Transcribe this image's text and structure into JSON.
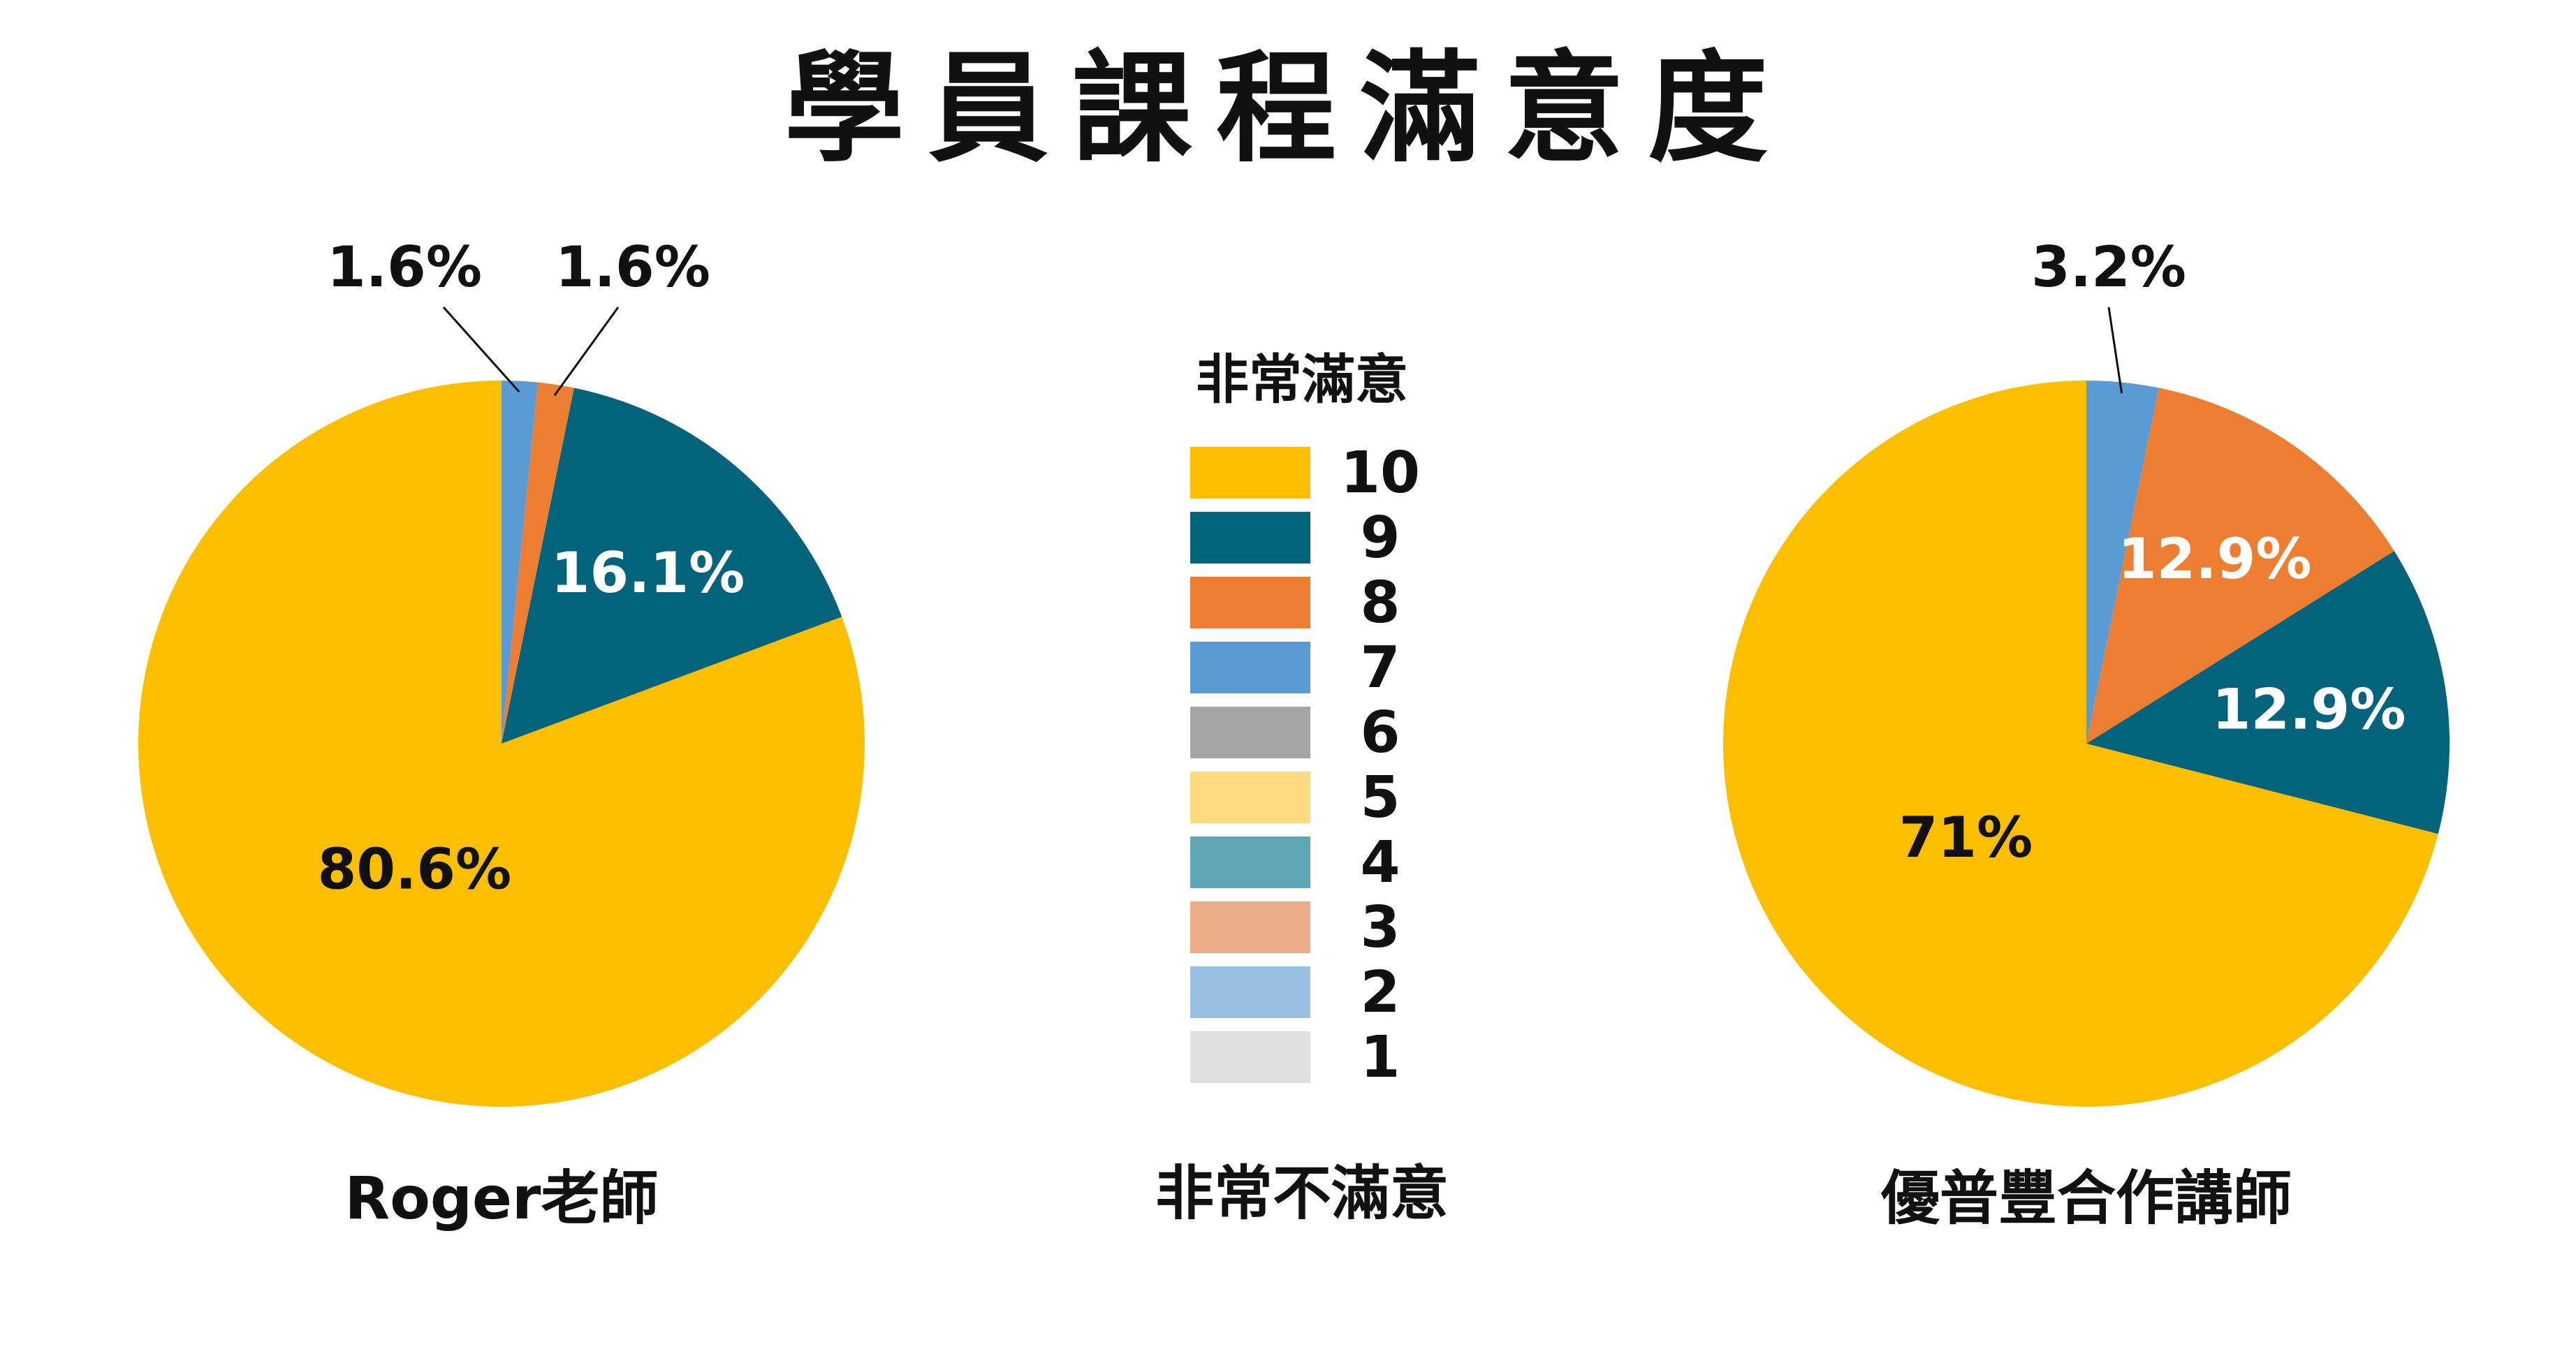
{
  "title": "學員課程滿意度",
  "legend": {
    "top_label": "非常滿意",
    "bottom_label": "非常不滿意",
    "items": [
      {
        "label": "10",
        "color": "#FBBF00"
      },
      {
        "label": "9",
        "color": "#03637A"
      },
      {
        "label": "8",
        "color": "#ED7D31"
      },
      {
        "label": "7",
        "color": "#5B9BD5"
      },
      {
        "label": "6",
        "color": "#A5A5A5"
      },
      {
        "label": "5",
        "color": "#FFDA80"
      },
      {
        "label": "4",
        "color": "#5FA7B4"
      },
      {
        "label": "3",
        "color": "#EAAD87"
      },
      {
        "label": "2",
        "color": "#97C0E3"
      },
      {
        "label": "1",
        "color": "#E0E0E0"
      }
    ]
  },
  "chart_data": [
    {
      "type": "pie",
      "title": "Roger老師",
      "start": "12 o'clock",
      "direction": "clockwise",
      "slices": [
        {
          "category": "7",
          "value": 1.6,
          "label": "1.6%",
          "color": "#5B9BD5",
          "label_style": "callout-dark"
        },
        {
          "category": "8",
          "value": 1.6,
          "label": "1.6%",
          "color": "#ED7D31",
          "label_style": "callout-dark"
        },
        {
          "category": "9",
          "value": 16.1,
          "label": "16.1%",
          "color": "#03637A",
          "label_style": "inside-light"
        },
        {
          "category": "10",
          "value": 80.6,
          "label": "80.6%",
          "color": "#FBBF00",
          "label_style": "inside-dark"
        }
      ]
    },
    {
      "type": "pie",
      "title": "優普豐合作講師",
      "start": "12 o'clock",
      "direction": "clockwise",
      "slices": [
        {
          "category": "7",
          "value": 3.2,
          "label": "3.2%",
          "color": "#5B9BD5",
          "label_style": "callout-dark"
        },
        {
          "category": "8",
          "value": 12.9,
          "label": "12.9%",
          "color": "#ED7D31",
          "label_style": "inside-light"
        },
        {
          "category": "9",
          "value": 12.9,
          "label": "12.9%",
          "color": "#03637A",
          "label_style": "inside-light"
        },
        {
          "category": "10",
          "value": 71,
          "label": "71%",
          "color": "#FBBF00",
          "label_style": "inside-dark"
        }
      ]
    }
  ]
}
